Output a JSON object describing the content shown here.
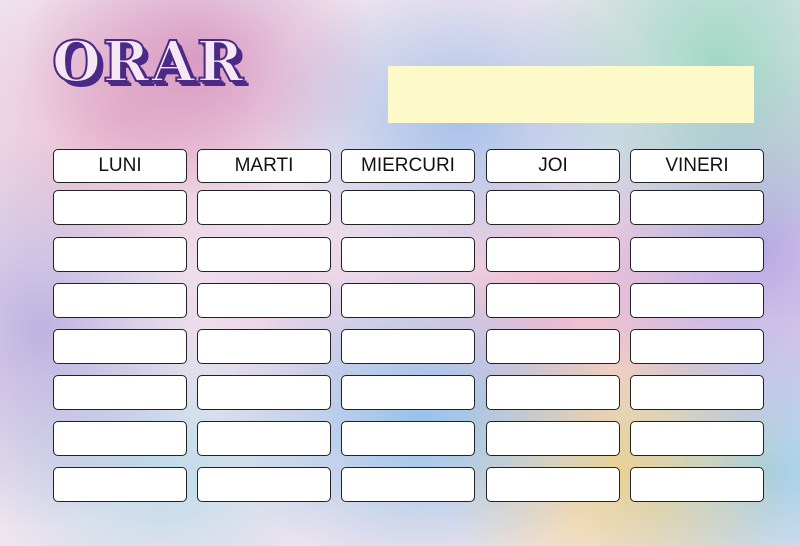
{
  "title": "ORAR",
  "days": [
    "LUNI",
    "MARTI",
    "MIERCURI",
    "JOI",
    "VINERI"
  ],
  "rows": 7,
  "colors": {
    "title": "#4a2a86",
    "name_box": "#fdf9c8"
  }
}
